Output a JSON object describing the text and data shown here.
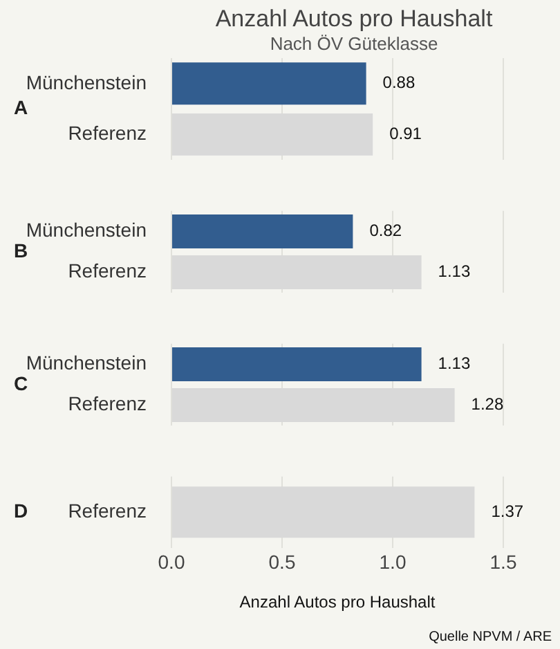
{
  "chart_data": [
    {
      "type": "bar",
      "orientation": "horizontal",
      "title": "Anzahl Autos pro Haushalt",
      "subtitle": "Nach ÖV Güteklasse",
      "ylabel": "A",
      "categories": [
        "Münchenstein",
        "Referenz"
      ],
      "values": [
        0.88,
        0.91
      ],
      "colors": [
        "#325d8f",
        "#d9d9d9"
      ],
      "xlim": [
        0,
        1.5
      ],
      "xticks": [
        {
          "value": 0,
          "label": null
        },
        {
          "value": 0.5,
          "label": null
        },
        {
          "value": 1,
          "label": null
        },
        {
          "value": 1.5,
          "label": null
        }
      ],
      "grid": "x",
      "data_labels": true,
      "tick_labels": "y"
    },
    {
      "type": "bar",
      "orientation": "horizontal",
      "ylabel": "B",
      "categories": [
        "Münchenstein",
        "Referenz"
      ],
      "values": [
        0.82,
        1.13
      ],
      "colors": [
        "#325d8f",
        "#d9d9d9"
      ],
      "xlim": [
        0,
        1.5
      ],
      "xticks": [
        {
          "value": 0,
          "label": null
        },
        {
          "value": 0.5,
          "label": null
        },
        {
          "value": 1,
          "label": null
        },
        {
          "value": 1.5,
          "label": null
        }
      ],
      "grid": "x",
      "data_labels": true,
      "tick_labels": "y"
    },
    {
      "type": "bar",
      "orientation": "horizontal",
      "ylabel": "C",
      "categories": [
        "Münchenstein",
        "Referenz"
      ],
      "values": [
        1.13,
        1.28
      ],
      "colors": [
        "#325d8f",
        "#d9d9d9"
      ],
      "xlim": [
        0,
        1.5
      ],
      "xticks": [
        {
          "value": 0,
          "label": null
        },
        {
          "value": 0.5,
          "label": null
        },
        {
          "value": 1,
          "label": null
        },
        {
          "value": 1.5,
          "label": null
        }
      ],
      "grid": "x",
      "data_labels": true,
      "tick_labels": "y"
    },
    {
      "type": "bar",
      "orientation": "horizontal",
      "ylabel": "D",
      "xlabel": "Anzahl Autos pro Haushalt",
      "annotations": [
        "Quelle NPVM / ARE"
      ],
      "categories": [
        "Referenz"
      ],
      "values": [
        1.37
      ],
      "colors": [
        "#d9d9d9"
      ],
      "xlim": [
        0,
        1.5
      ],
      "xticks": [
        {
          "value": 0,
          "label": "0.0"
        },
        {
          "value": 0.5,
          "label": "0.5"
        },
        {
          "value": 1,
          "label": "1.0"
        },
        {
          "value": 1.5,
          "label": "1.5"
        }
      ],
      "grid": "x",
      "data_labels": true
    }
  ]
}
